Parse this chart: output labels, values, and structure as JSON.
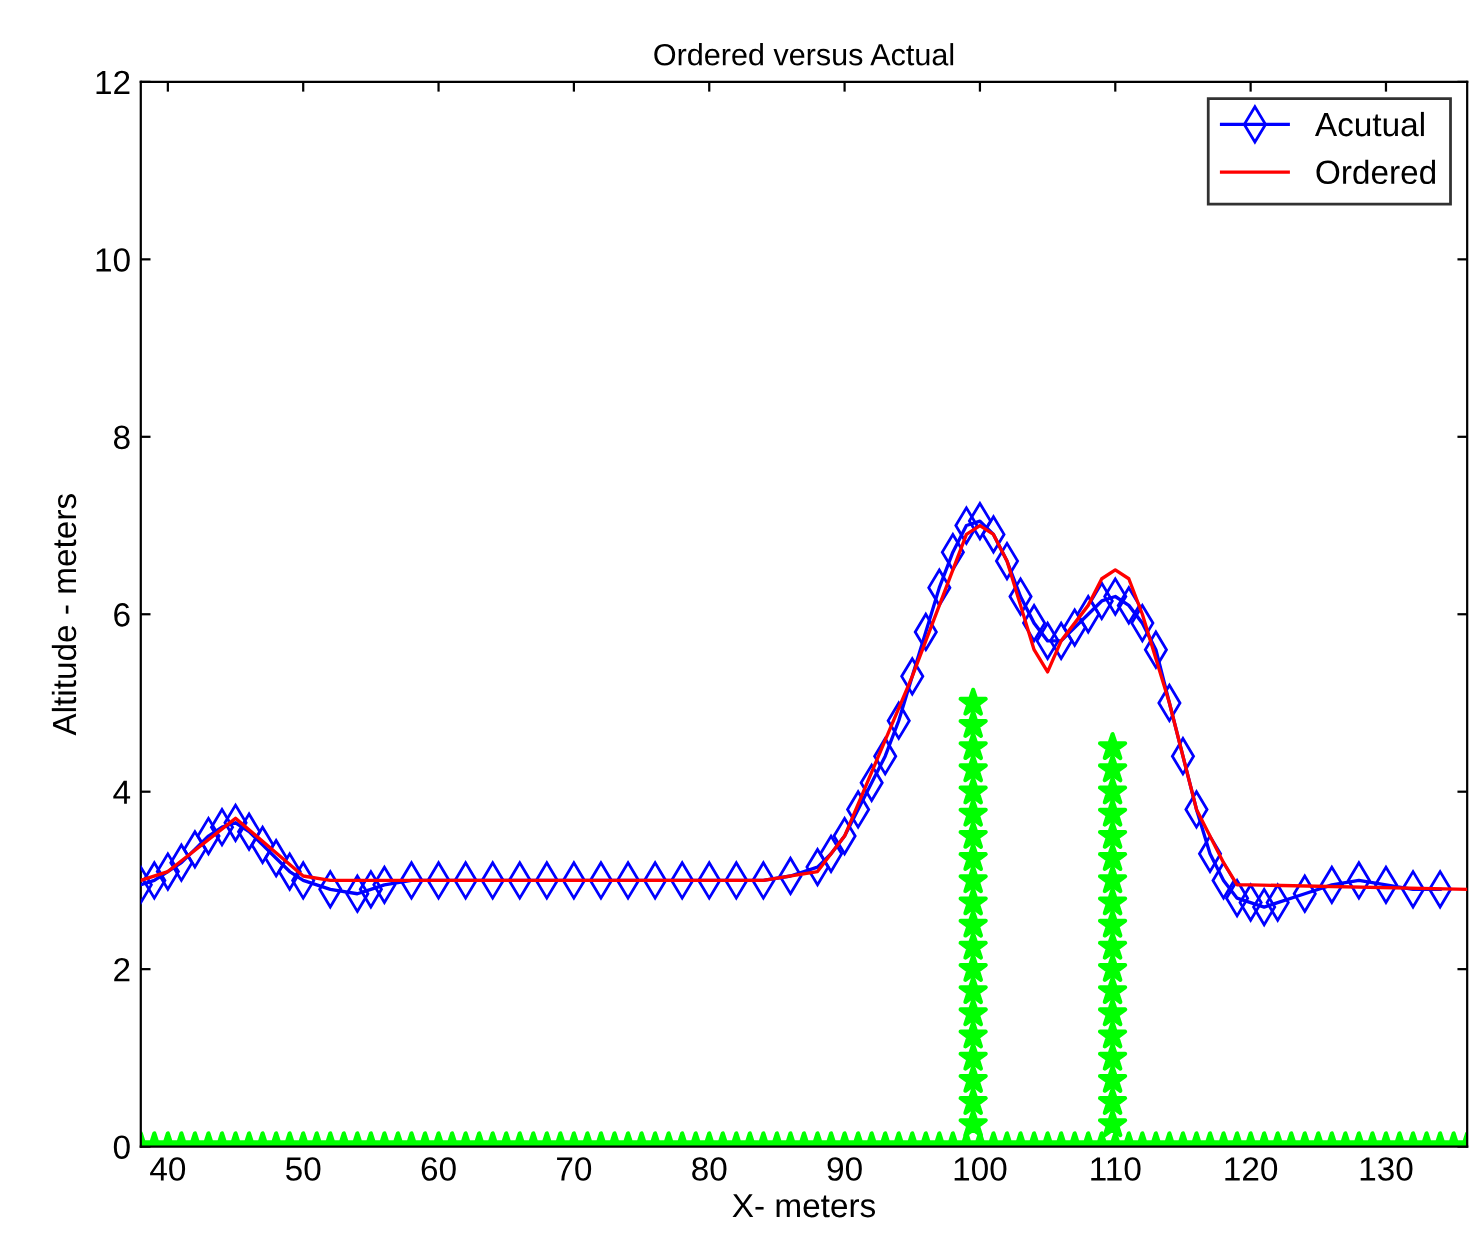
{
  "chart_data": {
    "type": "line",
    "title": "Ordered versus Actual",
    "xlabel": "X- meters",
    "ylabel": "Altitude - meters",
    "xlim": [
      38,
      136
    ],
    "xticks": [
      40,
      50,
      60,
      70,
      80,
      90,
      100,
      110,
      120,
      130
    ],
    "ylim": [
      0,
      12
    ],
    "yticks": [
      0,
      2,
      4,
      6,
      8,
      10,
      12
    ],
    "grid": false,
    "legend": "top right",
    "series": [
      {
        "name": "Acutual",
        "color": "#0000ff",
        "marker": "diamond",
        "x": [
          38,
          39,
          40,
          41,
          42,
          43,
          44,
          45,
          46,
          47,
          48,
          49,
          50,
          52,
          54,
          55,
          56,
          58,
          60,
          62,
          64,
          66,
          68,
          70,
          72,
          74,
          76,
          78,
          80,
          82,
          84,
          86,
          88,
          89,
          90,
          91,
          92,
          93,
          94,
          95,
          96,
          97,
          98,
          99,
          100,
          101,
          102,
          103,
          104,
          105,
          106,
          107,
          108,
          109,
          110,
          111,
          112,
          113,
          114,
          115,
          116,
          117,
          118,
          119,
          120,
          121,
          122,
          124,
          126,
          128,
          130,
          132,
          134
        ],
        "values": [
          2.95,
          3.0,
          3.1,
          3.2,
          3.35,
          3.5,
          3.6,
          3.65,
          3.55,
          3.4,
          3.25,
          3.1,
          3.0,
          2.9,
          2.85,
          2.9,
          2.95,
          3.0,
          3.0,
          3.0,
          3.0,
          3.0,
          3.0,
          3.0,
          3.0,
          3.0,
          3.0,
          3.0,
          3.0,
          3.0,
          3.0,
          3.05,
          3.15,
          3.3,
          3.5,
          3.8,
          4.1,
          4.4,
          4.8,
          5.3,
          5.8,
          6.3,
          6.7,
          7.0,
          7.05,
          6.9,
          6.6,
          6.2,
          5.9,
          5.7,
          5.7,
          5.85,
          6.0,
          6.15,
          6.2,
          6.1,
          5.9,
          5.6,
          5.0,
          4.4,
          3.8,
          3.3,
          3.0,
          2.8,
          2.75,
          2.7,
          2.75,
          2.85,
          2.95,
          3.0,
          2.95,
          2.9,
          2.9
        ]
      },
      {
        "name": "Ordered",
        "color": "#ff0000",
        "marker": "none",
        "x": [
          38,
          40,
          45,
          50,
          52,
          84,
          88,
          90,
          95,
          99,
          100,
          101,
          102,
          103,
          104,
          105,
          106,
          107,
          108,
          109,
          110,
          111,
          112,
          114,
          116,
          118,
          119,
          120,
          136
        ],
        "values": [
          3.0,
          3.1,
          3.7,
          3.05,
          3.0,
          3.0,
          3.1,
          3.5,
          5.3,
          6.9,
          7.0,
          6.9,
          6.6,
          6.1,
          5.6,
          5.35,
          5.7,
          5.9,
          6.1,
          6.4,
          6.5,
          6.4,
          6.0,
          5.0,
          3.8,
          3.2,
          2.95,
          2.95,
          2.9
        ]
      },
      {
        "color": "#00ff00",
        "type": "scatter",
        "marker": "star",
        "x": [
          38,
          39,
          40,
          41,
          42,
          43,
          44,
          45,
          46,
          47,
          48,
          49,
          50,
          51,
          52,
          53,
          54,
          55,
          56,
          57,
          58,
          59,
          60,
          61,
          62,
          63,
          64,
          65,
          66,
          67,
          68,
          69,
          70,
          71,
          72,
          73,
          74,
          75,
          76,
          77,
          78,
          79,
          80,
          81,
          82,
          83,
          84,
          85,
          86,
          87,
          88,
          89,
          90,
          91,
          92,
          93,
          94,
          95,
          96,
          97,
          98,
          99,
          100,
          101,
          102,
          103,
          104,
          105,
          106,
          107,
          108,
          109,
          110,
          111,
          112,
          113,
          114,
          115,
          116,
          117,
          118,
          119,
          120,
          121,
          122,
          123,
          124,
          125,
          126,
          127,
          128,
          129,
          130,
          131,
          132,
          133,
          134,
          135,
          136,
          99.5,
          99.5,
          99.5,
          99.5,
          99.5,
          99.5,
          99.5,
          99.5,
          99.5,
          99.5,
          99.5,
          99.5,
          99.5,
          99.5,
          99.5,
          99.5,
          99.5,
          99.5,
          99.5,
          99.5,
          109.8,
          109.8,
          109.8,
          109.8,
          109.8,
          109.8,
          109.8,
          109.8,
          109.8,
          109.8,
          109.8,
          109.8,
          109.8,
          109.8,
          109.8,
          109.8,
          109.8,
          109.8
        ],
        "values": [
          0,
          0,
          0,
          0,
          0,
          0,
          0,
          0,
          0,
          0,
          0,
          0,
          0,
          0,
          0,
          0,
          0,
          0,
          0,
          0,
          0,
          0,
          0,
          0,
          0,
          0,
          0,
          0,
          0,
          0,
          0,
          0,
          0,
          0,
          0,
          0,
          0,
          0,
          0,
          0,
          0,
          0,
          0,
          0,
          0,
          0,
          0,
          0,
          0,
          0,
          0,
          0,
          0,
          0,
          0,
          0,
          0,
          0,
          0,
          0,
          0,
          0,
          0,
          0,
          0,
          0,
          0,
          0,
          0,
          0,
          0,
          0,
          0,
          0,
          0,
          0,
          0,
          0,
          0,
          0,
          0,
          0,
          0,
          0,
          0,
          0,
          0,
          0,
          0,
          0,
          0,
          0,
          0,
          0,
          0,
          0,
          0,
          0,
          0,
          0.25,
          0.5,
          0.75,
          1.0,
          1.25,
          1.5,
          1.75,
          2.0,
          2.25,
          2.5,
          2.75,
          3.0,
          3.25,
          3.5,
          3.75,
          4.0,
          4.25,
          4.5,
          4.75,
          5.0,
          0.25,
          0.5,
          0.75,
          1.0,
          1.25,
          1.5,
          1.75,
          2.0,
          2.25,
          2.5,
          2.75,
          3.0,
          3.25,
          3.5,
          3.75,
          4.0,
          4.25,
          4.5
        ]
      }
    ]
  }
}
